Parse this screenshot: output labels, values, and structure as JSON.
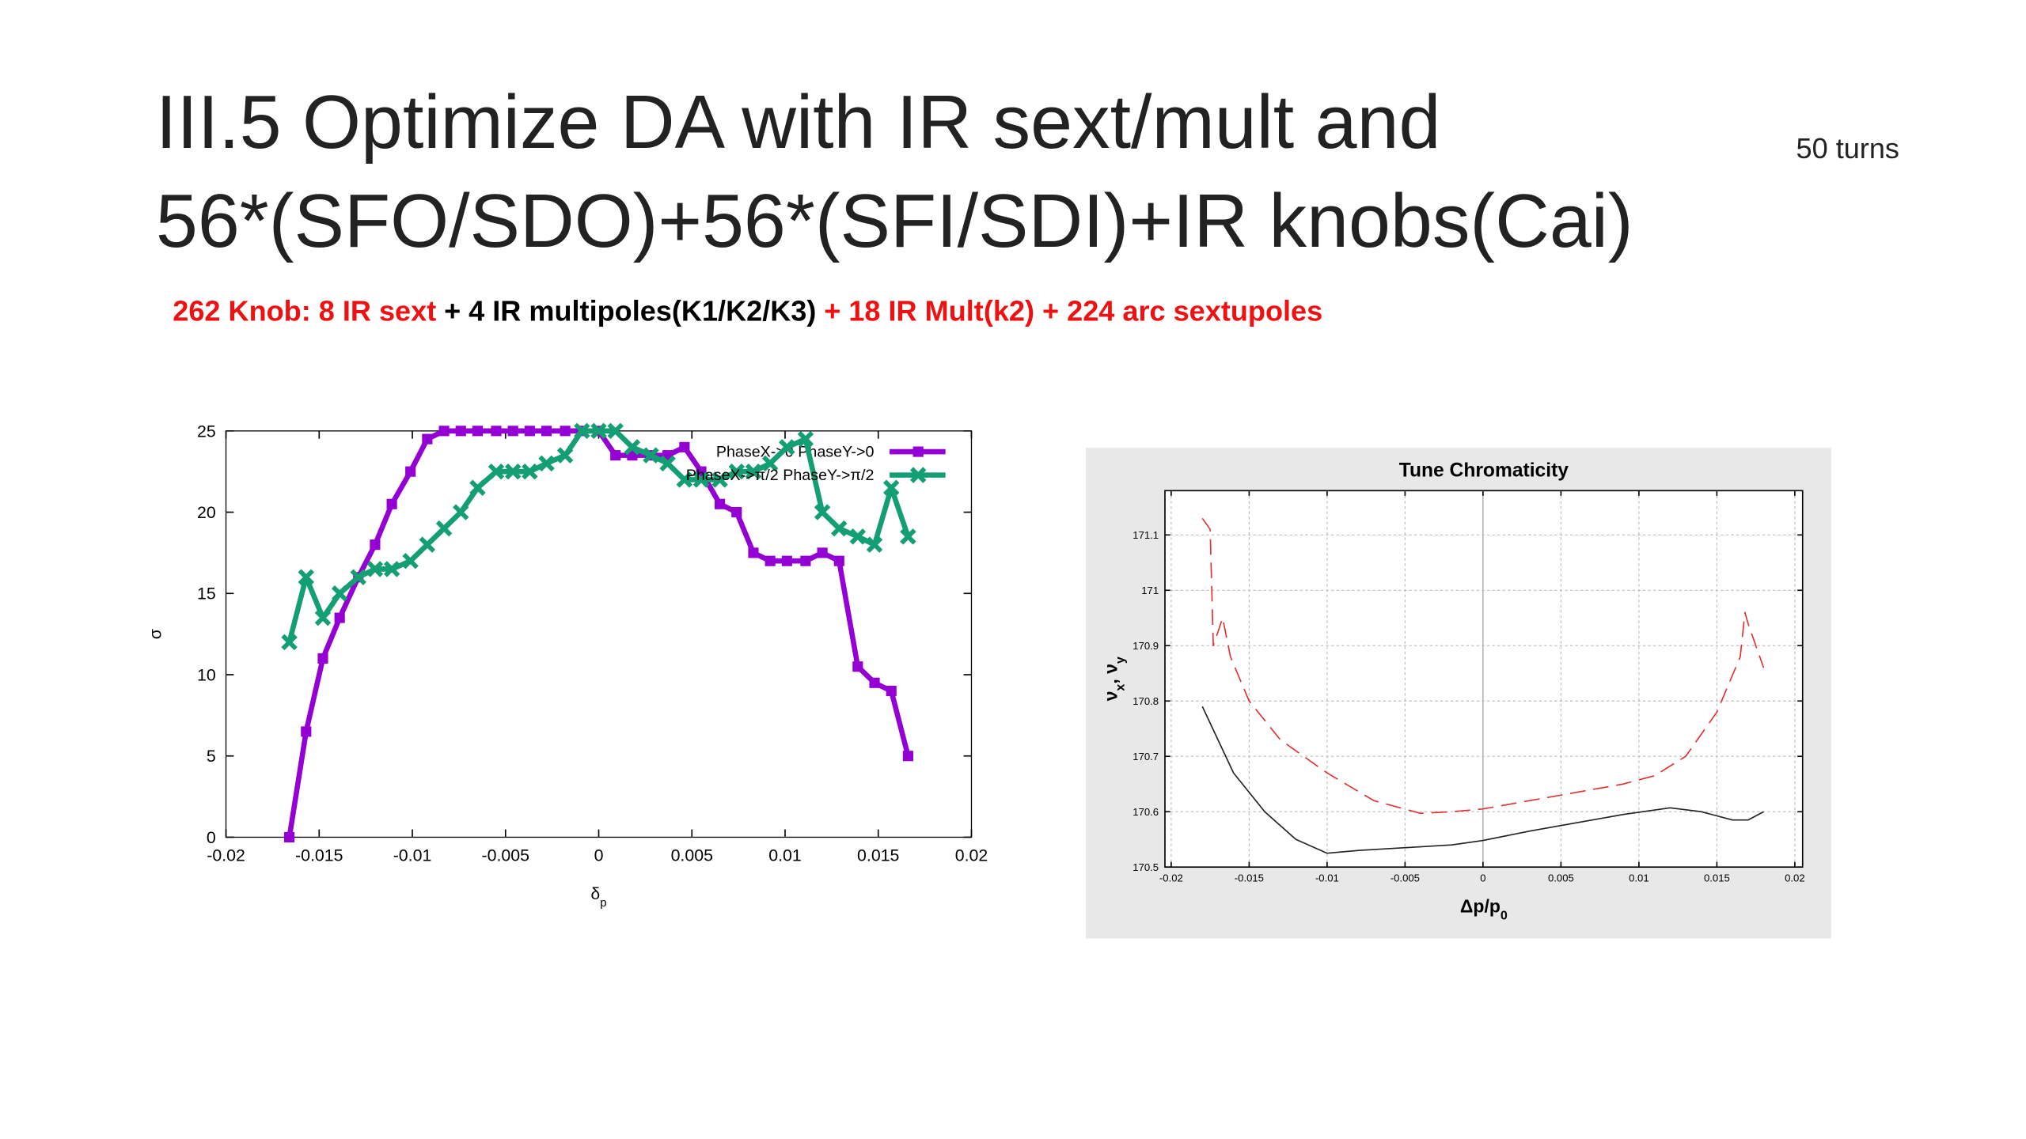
{
  "title_lines": [
    "III.5 Optimize DA with IR sext/mult and",
    "56*(SFO/SDO)+56*(SFI/SDI)+IR knobs(Cai)"
  ],
  "note": "50 turns",
  "subtitle_parts": [
    {
      "text": "262 Knob: 8 IR sext",
      "color": "#ee1111"
    },
    {
      "text": "+ 4 IR multipoles(K1/K2/K3)",
      "color": "#000000"
    },
    {
      "text": "+ 18 IR Mult(k2) + 224 arc sextupoles",
      "color": "#ee1111"
    }
  ],
  "chart_data": [
    {
      "type": "line",
      "ylabel": [
        {
          "text": "σ"
        }
      ],
      "xlabel": [
        {
          "text": "δ"
        },
        {
          "sub": "p"
        }
      ],
      "xlim": [
        -0.02,
        0.02
      ],
      "xticks": [
        -0.02,
        -0.015,
        -0.01,
        -0.005,
        0,
        0.005,
        0.01,
        0.015,
        0.02
      ],
      "ylim": [
        0,
        25
      ],
      "yticks": [
        0,
        5,
        10,
        15,
        20,
        25
      ],
      "grid": false,
      "legend": "upper right",
      "x": [
        -0.0166,
        -0.0157,
        -0.0148,
        -0.0139,
        -0.0129,
        -0.012,
        -0.0111,
        -0.0101,
        -0.0092,
        -0.0083,
        -0.0074,
        -0.0065,
        -0.0055,
        -0.0046,
        -0.0037,
        -0.0028,
        -0.0018,
        -0.0009,
        0,
        0.0009,
        0.0018,
        0.0028,
        0.0037,
        0.0046,
        0.0055,
        0.0065,
        0.0074,
        0.0083,
        0.0092,
        0.0101,
        0.0111,
        0.012,
        0.0129,
        0.0139,
        0.0148,
        0.0157,
        0.0166
      ],
      "series": [
        {
          "name": "PhaseX->0 PhaseY->0",
          "color": "#9400d3",
          "marker": "square",
          "values": [
            0,
            6.5,
            11,
            13.5,
            16,
            18,
            20.5,
            22.5,
            24.5,
            25,
            25,
            25,
            25,
            25,
            25,
            25,
            25,
            25,
            25,
            23.5,
            23.5,
            23.5,
            23.5,
            24,
            22.5,
            20.5,
            20,
            17.5,
            17,
            17,
            17,
            17.5,
            17,
            10.5,
            9.5,
            9,
            5
          ]
        },
        {
          "name": "PhaseX->π/2 PhaseY->π/2",
          "color": "#139e74",
          "marker": "x",
          "values": [
            12,
            16,
            13.5,
            15,
            16,
            16.5,
            16.5,
            17,
            18,
            19,
            20,
            21.5,
            22.5,
            22.5,
            22.5,
            23,
            23.5,
            25,
            25,
            25,
            24,
            23.5,
            23,
            22,
            22,
            22,
            22.5,
            22.5,
            23,
            24,
            24.5,
            20,
            19,
            18.5,
            18,
            21.5,
            18.5
          ]
        }
      ]
    },
    {
      "type": "line",
      "title": "Tune Chromaticity",
      "xlabel": [
        {
          "text": "Δp/p"
        },
        {
          "sub": "0"
        }
      ],
      "ylabel": [
        {
          "text": "ν"
        },
        {
          "sub": "x"
        },
        {
          "text": ", ν"
        },
        {
          "sub": "y"
        }
      ],
      "xlim": [
        -0.0204,
        0.0205
      ],
      "xticks": [
        -0.02,
        -0.015,
        -0.01,
        -0.005,
        0,
        0.005,
        0.01,
        0.015,
        0.02
      ],
      "ylim": [
        170.5,
        171.18
      ],
      "yticks": [
        170.5,
        170.6,
        170.7,
        170.8,
        170.9,
        171,
        171.1
      ],
      "grid": true,
      "series": [
        {
          "color": "#222222",
          "dash": false,
          "x": [
            -0.018,
            -0.016,
            -0.014,
            -0.012,
            -0.01,
            -0.008,
            -0.005,
            -0.002,
            0,
            0.003,
            0.006,
            0.009,
            0.012,
            0.014,
            0.016,
            0.017,
            0.018
          ],
          "values": [
            170.79,
            170.67,
            170.6,
            170.55,
            170.525,
            170.53,
            170.535,
            170.54,
            170.548,
            170.565,
            170.58,
            170.595,
            170.607,
            170.6,
            170.585,
            170.585,
            170.6
          ]
        },
        {
          "color": "#e03030",
          "dash": true,
          "x": [
            -0.018,
            -0.0175,
            -0.0173,
            -0.0167,
            -0.0162,
            -0.015,
            -0.013,
            -0.01,
            -0.007,
            -0.004,
            -0.002,
            0,
            0.003,
            0.006,
            0.009,
            0.011,
            0.013,
            0.015,
            0.0165,
            0.0168,
            0.017,
            0.018
          ],
          "values": [
            171.13,
            171.11,
            170.9,
            170.95,
            170.88,
            170.8,
            170.73,
            170.67,
            170.62,
            170.597,
            170.6,
            170.605,
            170.62,
            170.635,
            170.65,
            170.665,
            170.7,
            170.78,
            170.88,
            170.96,
            170.94,
            170.86
          ]
        }
      ]
    }
  ]
}
